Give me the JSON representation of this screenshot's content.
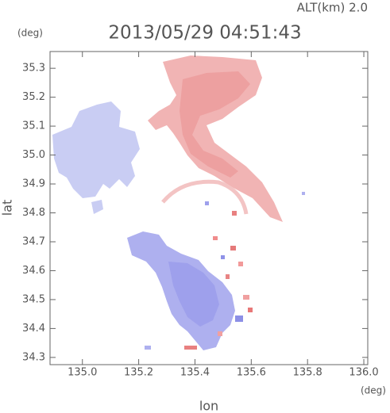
{
  "chart_data": {
    "type": "map",
    "title": "2013/05/29 04:51:43",
    "subtitle": "ALT(km) 2.0",
    "y_unit": "(deg)",
    "x_unit": "(deg)",
    "xlabel": "lon",
    "ylabel": "lat",
    "xlim": [
      134.885,
      136.014
    ],
    "ylim": [
      34.275,
      35.358
    ],
    "xticks": [
      {
        "value": 135,
        "label": "135.0"
      },
      135.2,
      135.4,
      135.6,
      135.8,
      {
        "value": 136,
        "label": "136.0"
      }
    ],
    "yticks": [
      34.3,
      34.4,
      34.5,
      34.6,
      34.7,
      34.8,
      34.9,
      {
        "value": 35,
        "label": "35.0"
      },
      35.1,
      35.2,
      35.3
    ]
  }
}
